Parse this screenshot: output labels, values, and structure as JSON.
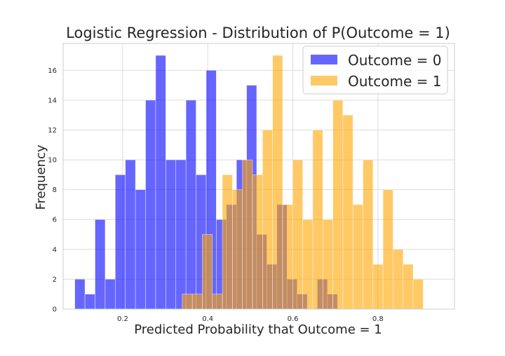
{
  "chart_data": {
    "type": "histogram",
    "title": "Logistic Regression - Distribution of P(Outcome = 1)",
    "xlabel": "Predicted Probability that Outcome = 1",
    "ylabel": "Frequency",
    "xlim": [
      0.06,
      0.98
    ],
    "ylim": [
      0,
      17.8
    ],
    "xticks": [
      0.2,
      0.4,
      0.6,
      0.8
    ],
    "xtick_labels": [
      "0.2",
      "0.4",
      "0.6",
      "0.8"
    ],
    "yticks": [
      0,
      2,
      4,
      6,
      8,
      10,
      12,
      14,
      16
    ],
    "ytick_labels": [
      "0",
      "2",
      "4",
      "6",
      "8",
      "10",
      "12",
      "14",
      "16"
    ],
    "grid": true,
    "legend": {
      "position": "top-right"
    },
    "series": [
      {
        "name": "Outcome = 0",
        "color": "#0000ff",
        "opacity": 0.6,
        "bins": [
          {
            "x0": 0.0875,
            "x1": 0.1113,
            "count": 2
          },
          {
            "x0": 0.1113,
            "x1": 0.135,
            "count": 1
          },
          {
            "x0": 0.135,
            "x1": 0.1588,
            "count": 6
          },
          {
            "x0": 0.1588,
            "x1": 0.1825,
            "count": 2
          },
          {
            "x0": 0.1825,
            "x1": 0.2063,
            "count": 9
          },
          {
            "x0": 0.2063,
            "x1": 0.23,
            "count": 10
          },
          {
            "x0": 0.23,
            "x1": 0.2538,
            "count": 8
          },
          {
            "x0": 0.2538,
            "x1": 0.2775,
            "count": 14
          },
          {
            "x0": 0.2775,
            "x1": 0.3013,
            "count": 17
          },
          {
            "x0": 0.3013,
            "x1": 0.325,
            "count": 10
          },
          {
            "x0": 0.325,
            "x1": 0.3488,
            "count": 10
          },
          {
            "x0": 0.3488,
            "x1": 0.3725,
            "count": 14
          },
          {
            "x0": 0.3725,
            "x1": 0.3963,
            "count": 9
          },
          {
            "x0": 0.3963,
            "x1": 0.42,
            "count": 16
          },
          {
            "x0": 0.42,
            "x1": 0.4438,
            "count": 6
          },
          {
            "x0": 0.4438,
            "x1": 0.4675,
            "count": 7
          },
          {
            "x0": 0.4675,
            "x1": 0.4913,
            "count": 10
          },
          {
            "x0": 0.4913,
            "x1": 0.515,
            "count": 15
          },
          {
            "x0": 0.515,
            "x1": 0.5388,
            "count": 5
          },
          {
            "x0": 0.5388,
            "x1": 0.5625,
            "count": 3
          },
          {
            "x0": 0.5625,
            "x1": 0.5863,
            "count": 7
          },
          {
            "x0": 0.5863,
            "x1": 0.61,
            "count": 2
          },
          {
            "x0": 0.61,
            "x1": 0.6338,
            "count": 1
          },
          {
            "x0": 0.6338,
            "x1": 0.6575,
            "count": 0
          },
          {
            "x0": 0.6575,
            "x1": 0.6813,
            "count": 2
          },
          {
            "x0": 0.6813,
            "x1": 0.705,
            "count": 1
          }
        ]
      },
      {
        "name": "Outcome = 1",
        "color": "#ffa500",
        "opacity": 0.6,
        "bins": [
          {
            "x0": 0.34,
            "x1": 0.3636,
            "count": 1
          },
          {
            "x0": 0.3636,
            "x1": 0.3872,
            "count": 1
          },
          {
            "x0": 0.3872,
            "x1": 0.4108,
            "count": 5
          },
          {
            "x0": 0.4108,
            "x1": 0.4344,
            "count": 1
          },
          {
            "x0": 0.4344,
            "x1": 0.458,
            "count": 9
          },
          {
            "x0": 0.458,
            "x1": 0.4816,
            "count": 8
          },
          {
            "x0": 0.4816,
            "x1": 0.5052,
            "count": 10
          },
          {
            "x0": 0.5052,
            "x1": 0.5288,
            "count": 9
          },
          {
            "x0": 0.5288,
            "x1": 0.5524,
            "count": 12
          },
          {
            "x0": 0.5524,
            "x1": 0.576,
            "count": 17
          },
          {
            "x0": 0.576,
            "x1": 0.5996,
            "count": 7
          },
          {
            "x0": 0.5996,
            "x1": 0.6232,
            "count": 10
          },
          {
            "x0": 0.6232,
            "x1": 0.6468,
            "count": 6
          },
          {
            "x0": 0.6468,
            "x1": 0.6704,
            "count": 12
          },
          {
            "x0": 0.6704,
            "x1": 0.694,
            "count": 6
          },
          {
            "x0": 0.694,
            "x1": 0.7176,
            "count": 14
          },
          {
            "x0": 0.7176,
            "x1": 0.7412,
            "count": 13
          },
          {
            "x0": 0.7412,
            "x1": 0.7648,
            "count": 7
          },
          {
            "x0": 0.7648,
            "x1": 0.7884,
            "count": 10
          },
          {
            "x0": 0.7884,
            "x1": 0.812,
            "count": 3
          },
          {
            "x0": 0.812,
            "x1": 0.8356,
            "count": 8
          },
          {
            "x0": 0.8356,
            "x1": 0.8592,
            "count": 4
          },
          {
            "x0": 0.8592,
            "x1": 0.8828,
            "count": 3
          },
          {
            "x0": 0.8828,
            "x1": 0.9064,
            "count": 2
          }
        ]
      }
    ]
  }
}
